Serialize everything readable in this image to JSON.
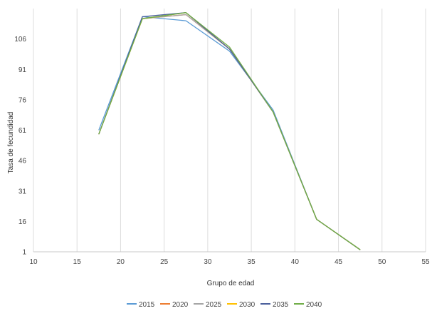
{
  "chart_data": {
    "type": "line",
    "xlabel": "Grupo de edad",
    "ylabel": "Tasa de fecundidad",
    "xlim": [
      10,
      55
    ],
    "ylim": [
      1,
      121
    ],
    "xticks": [
      10,
      15,
      20,
      25,
      30,
      35,
      40,
      45,
      50,
      55
    ],
    "yticks": [
      1,
      16,
      31,
      46,
      61,
      76,
      91,
      106
    ],
    "grid": "vertical",
    "legend_position": "bottom",
    "x": [
      17.5,
      22.5,
      27.5,
      32.5,
      37.5,
      42.5,
      47.5
    ],
    "series": [
      {
        "name": "2015",
        "color": "#5b9bd5",
        "values": [
          61,
          117,
          115,
          100,
          71,
          17,
          2
        ]
      },
      {
        "name": "2020",
        "color": "#ed7d31",
        "values": [
          59,
          116,
          118,
          101,
          70,
          17,
          2
        ]
      },
      {
        "name": "2025",
        "color": "#a5a5a5",
        "values": [
          59,
          116,
          118,
          101,
          70,
          17,
          2
        ]
      },
      {
        "name": "2030",
        "color": "#ffc000",
        "values": [
          59,
          116,
          119,
          101,
          70,
          17,
          2
        ]
      },
      {
        "name": "2035",
        "color": "#4a5f9c",
        "values": [
          59,
          117,
          119,
          101,
          70,
          17,
          2
        ]
      },
      {
        "name": "2040",
        "color": "#70ad47",
        "values": [
          59,
          116,
          119,
          102,
          70,
          17,
          2
        ]
      }
    ]
  }
}
